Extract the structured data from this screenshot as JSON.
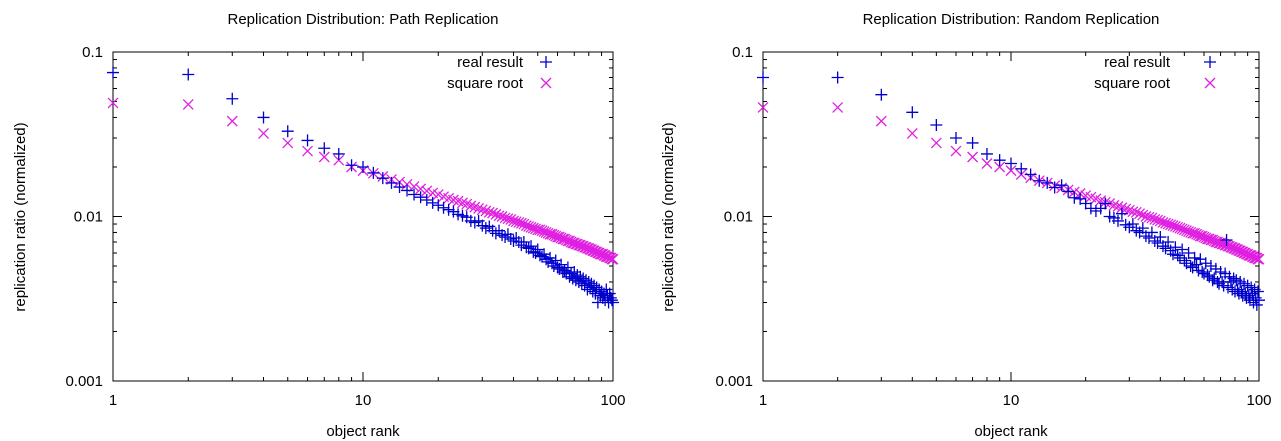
{
  "colors": {
    "real": "#0000cc",
    "sqrt": "#e020e0",
    "axis": "#000000"
  },
  "chart_data": [
    {
      "type": "scatter",
      "title": "Replication Distribution: Path Replication",
      "xlabel": "object rank",
      "ylabel": "replication ratio (normalized)",
      "xscale": "log",
      "yscale": "log",
      "xlim": [
        1,
        100
      ],
      "ylim": [
        0.001,
        0.1
      ],
      "xticks": [
        1,
        10,
        100
      ],
      "xtick_labels": [
        "1",
        "10",
        "100"
      ],
      "yticks": [
        0.001,
        0.01,
        0.1
      ],
      "ytick_labels": [
        "0.001",
        "0.01",
        "0.1"
      ],
      "grid": false,
      "legend": "top-right",
      "series": [
        {
          "name": "real result",
          "marker": "plus",
          "x": [
            1,
            2,
            3,
            4,
            5,
            6,
            7,
            8,
            9,
            10,
            11,
            12,
            13,
            14,
            15,
            16,
            17,
            18,
            19,
            20,
            21,
            22,
            23,
            24,
            25,
            26,
            27,
            28,
            29,
            30,
            31,
            32,
            33,
            34,
            35,
            36,
            37,
            38,
            39,
            40,
            41,
            42,
            43,
            44,
            45,
            46,
            47,
            48,
            49,
            50,
            51,
            52,
            53,
            54,
            55,
            56,
            57,
            58,
            59,
            60,
            61,
            62,
            63,
            64,
            65,
            66,
            67,
            68,
            69,
            70,
            71,
            72,
            73,
            74,
            75,
            76,
            77,
            78,
            79,
            80,
            81,
            82,
            83,
            84,
            85,
            86,
            87,
            88,
            89,
            90,
            91,
            92,
            93,
            94,
            95,
            96,
            97,
            98,
            99,
            100
          ],
          "y": [
            0.075,
            0.073,
            0.052,
            0.04,
            0.033,
            0.029,
            0.026,
            0.024,
            0.0205,
            0.02,
            0.0184,
            0.0171,
            0.016,
            0.0151,
            0.0144,
            0.0136,
            0.0131,
            0.0126,
            0.0121,
            0.0117,
            0.0113,
            0.011,
            0.0107,
            0.0103,
            0.0101,
            0.0099,
            0.0094,
            0.0092,
            0.0094,
            0.0088,
            0.0085,
            0.0087,
            0.0082,
            0.0079,
            0.0082,
            0.0077,
            0.0075,
            0.0078,
            0.0073,
            0.0071,
            0.0074,
            0.007,
            0.0067,
            0.007,
            0.0065,
            0.0064,
            0.0066,
            0.0061,
            0.006,
            0.0063,
            0.0058,
            0.0057,
            0.0059,
            0.0055,
            0.0053,
            0.0056,
            0.0052,
            0.005,
            0.0054,
            0.0049,
            0.0048,
            0.0051,
            0.0046,
            0.0047,
            0.0045,
            0.0049,
            0.0043,
            0.0045,
            0.0042,
            0.0046,
            0.0041,
            0.0044,
            0.004,
            0.0043,
            0.0039,
            0.0042,
            0.0038,
            0.0041,
            0.0036,
            0.004,
            0.0037,
            0.0039,
            0.0035,
            0.0038,
            0.0034,
            0.0037,
            0.003,
            0.0036,
            0.0033,
            0.0035,
            0.0032,
            0.0034,
            0.0031,
            0.0036,
            0.0033,
            0.003,
            0.0034,
            0.0032,
            0.0031,
            0.003
          ]
        },
        {
          "name": "square root",
          "marker": "cross",
          "x": [
            1,
            2,
            3,
            4,
            5,
            6,
            7,
            8,
            9,
            10,
            11,
            12,
            13,
            14,
            15,
            16,
            17,
            18,
            19,
            20,
            21,
            22,
            23,
            24,
            25,
            26,
            27,
            28,
            29,
            30,
            31,
            32,
            33,
            34,
            35,
            36,
            37,
            38,
            39,
            40,
            41,
            42,
            43,
            44,
            45,
            46,
            47,
            48,
            49,
            50,
            51,
            52,
            53,
            54,
            55,
            56,
            57,
            58,
            59,
            60,
            61,
            62,
            63,
            64,
            65,
            66,
            67,
            68,
            69,
            70,
            71,
            72,
            73,
            74,
            75,
            76,
            77,
            78,
            79,
            80,
            81,
            82,
            83,
            84,
            85,
            86,
            87,
            88,
            89,
            90,
            91,
            92,
            93,
            94,
            95,
            96,
            97,
            98,
            99,
            100
          ],
          "y": [
            0.049,
            0.048,
            0.038,
            0.032,
            0.028,
            0.025,
            0.023,
            0.022,
            0.02,
            0.019,
            0.0183,
            0.0175,
            0.0168,
            0.0162,
            0.0157,
            0.0152,
            0.0147,
            0.0143,
            0.0139,
            0.0136,
            0.0132,
            0.0129,
            0.0126,
            0.0124,
            0.0121,
            0.0119,
            0.0116,
            0.0114,
            0.0112,
            0.011,
            0.0108,
            0.0106,
            0.0105,
            0.0103,
            0.0101,
            0.01,
            0.0098,
            0.0097,
            0.0096,
            0.0094,
            0.0093,
            0.0092,
            0.0091,
            0.009,
            0.0088,
            0.0087,
            0.0086,
            0.0085,
            0.0084,
            0.0083,
            0.0083,
            0.0082,
            0.0081,
            0.008,
            0.0079,
            0.0078,
            0.0078,
            0.0077,
            0.0076,
            0.0075,
            0.0075,
            0.0074,
            0.0073,
            0.0073,
            0.0072,
            0.0071,
            0.0071,
            0.007,
            0.0069,
            0.0069,
            0.0068,
            0.0068,
            0.0067,
            0.0067,
            0.0066,
            0.0066,
            0.0065,
            0.0065,
            0.0064,
            0.0064,
            0.0063,
            0.0063,
            0.0062,
            0.0062,
            0.0061,
            0.0061,
            0.006,
            0.006,
            0.0059,
            0.0059,
            0.0059,
            0.0058,
            0.0058,
            0.0057,
            0.0057,
            0.0057,
            0.0056,
            0.0056,
            0.0055,
            0.0055
          ]
        }
      ]
    },
    {
      "type": "scatter",
      "title": "Replication Distribution: Random Replication",
      "xlabel": "object rank",
      "ylabel": "replication ratio (normalized)",
      "xscale": "log",
      "yscale": "log",
      "xlim": [
        1,
        100
      ],
      "ylim": [
        0.001,
        0.1
      ],
      "xticks": [
        1,
        10,
        100
      ],
      "xtick_labels": [
        "1",
        "10",
        "100"
      ],
      "yticks": [
        0.001,
        0.01,
        0.1
      ],
      "ytick_labels": [
        "0.001",
        "0.01",
        "0.1"
      ],
      "grid": false,
      "legend": "top-right",
      "series": [
        {
          "name": "real result",
          "marker": "plus",
          "x": [
            1,
            2,
            3,
            4,
            5,
            6,
            7,
            8,
            9,
            10,
            11,
            12,
            13,
            14,
            15,
            16,
            17,
            18,
            19,
            20,
            21,
            22,
            23,
            24,
            25,
            26,
            27,
            28,
            29,
            30,
            31,
            32,
            33,
            34,
            35,
            36,
            37,
            38,
            39,
            40,
            41,
            42,
            43,
            44,
            45,
            46,
            47,
            48,
            49,
            50,
            51,
            52,
            53,
            54,
            55,
            56,
            57,
            58,
            59,
            60,
            61,
            62,
            63,
            64,
            65,
            66,
            67,
            68,
            69,
            70,
            71,
            72,
            73,
            74,
            75,
            76,
            77,
            78,
            79,
            80,
            81,
            82,
            83,
            84,
            85,
            86,
            87,
            88,
            89,
            90,
            91,
            92,
            93,
            94,
            95,
            96,
            97,
            98,
            99,
            100
          ],
          "y": [
            0.07,
            0.07,
            0.055,
            0.043,
            0.036,
            0.03,
            0.028,
            0.024,
            0.022,
            0.021,
            0.0195,
            0.018,
            0.0165,
            0.016,
            0.015,
            0.0155,
            0.0142,
            0.013,
            0.0128,
            0.012,
            0.0112,
            0.0108,
            0.0112,
            0.012,
            0.01,
            0.0098,
            0.0094,
            0.0104,
            0.0089,
            0.0086,
            0.009,
            0.0082,
            0.008,
            0.0085,
            0.0076,
            0.0074,
            0.008,
            0.0071,
            0.0069,
            0.0075,
            0.0066,
            0.0064,
            0.007,
            0.0062,
            0.0059,
            0.0065,
            0.0058,
            0.0056,
            0.0063,
            0.0054,
            0.0052,
            0.006,
            0.005,
            0.0049,
            0.0056,
            0.0051,
            0.0047,
            0.0055,
            0.0046,
            0.0045,
            0.0052,
            0.0044,
            0.0043,
            0.005,
            0.0041,
            0.0042,
            0.0048,
            0.004,
            0.0039,
            0.0046,
            0.004,
            0.0038,
            0.0045,
            0.0072,
            0.0037,
            0.0043,
            0.004,
            0.0036,
            0.0042,
            0.0035,
            0.0041,
            0.0036,
            0.0034,
            0.004,
            0.0035,
            0.0033,
            0.0039,
            0.0034,
            0.0032,
            0.0038,
            0.0033,
            0.0031,
            0.0037,
            0.0034,
            0.003,
            0.0036,
            0.0032,
            0.0029,
            0.0035,
            0.0031
          ]
        },
        {
          "name": "square root",
          "marker": "cross",
          "x": [
            1,
            2,
            3,
            4,
            5,
            6,
            7,
            8,
            9,
            10,
            11,
            12,
            13,
            14,
            15,
            16,
            17,
            18,
            19,
            20,
            21,
            22,
            23,
            24,
            25,
            26,
            27,
            28,
            29,
            30,
            31,
            32,
            33,
            34,
            35,
            36,
            37,
            38,
            39,
            40,
            41,
            42,
            43,
            44,
            45,
            46,
            47,
            48,
            49,
            50,
            51,
            52,
            53,
            54,
            55,
            56,
            57,
            58,
            59,
            60,
            61,
            62,
            63,
            64,
            65,
            66,
            67,
            68,
            69,
            70,
            71,
            72,
            73,
            74,
            75,
            76,
            77,
            78,
            79,
            80,
            81,
            82,
            83,
            84,
            85,
            86,
            87,
            88,
            89,
            90,
            91,
            92,
            93,
            94,
            95,
            96,
            97,
            98,
            99,
            100
          ],
          "y": [
            0.046,
            0.046,
            0.038,
            0.032,
            0.028,
            0.025,
            0.023,
            0.021,
            0.02,
            0.019,
            0.018,
            0.0172,
            0.0165,
            0.016,
            0.0154,
            0.0149,
            0.0145,
            0.0141,
            0.0138,
            0.0134,
            0.0131,
            0.0128,
            0.0125,
            0.0122,
            0.012,
            0.0117,
            0.0115,
            0.0113,
            0.0111,
            0.0109,
            0.0107,
            0.0106,
            0.0104,
            0.0102,
            0.01,
            0.0099,
            0.0098,
            0.0096,
            0.0095,
            0.0094,
            0.0092,
            0.0091,
            0.009,
            0.0089,
            0.0088,
            0.0087,
            0.0086,
            0.0085,
            0.0084,
            0.0083,
            0.0082,
            0.0081,
            0.008,
            0.0079,
            0.0079,
            0.0078,
            0.0077,
            0.0076,
            0.0076,
            0.0075,
            0.0074,
            0.0073,
            0.0073,
            0.0072,
            0.0072,
            0.0071,
            0.007,
            0.007,
            0.0069,
            0.0069,
            0.0068,
            0.0068,
            0.0067,
            0.0067,
            0.0066,
            0.0066,
            0.0065,
            0.0065,
            0.0064,
            0.0064,
            0.0063,
            0.0063,
            0.0062,
            0.0062,
            0.0061,
            0.0061,
            0.006,
            0.006,
            0.0059,
            0.0059,
            0.0058,
            0.0058,
            0.0058,
            0.0057,
            0.0057,
            0.0056,
            0.0056,
            0.0056,
            0.0055,
            0.0055
          ]
        }
      ]
    }
  ]
}
